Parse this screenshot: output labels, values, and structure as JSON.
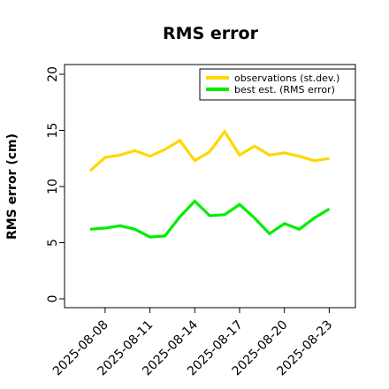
{
  "chart_data": {
    "type": "line",
    "title": "RMS error",
    "xlabel": "",
    "ylabel": "RMS error (cm)",
    "ylim": [
      0,
      21
    ],
    "yticks": [
      0,
      5,
      10,
      15,
      20
    ],
    "x": [
      "2025-08-07",
      "2025-08-08",
      "2025-08-09",
      "2025-08-10",
      "2025-08-11",
      "2025-08-12",
      "2025-08-13",
      "2025-08-14",
      "2025-08-15",
      "2025-08-16",
      "2025-08-17",
      "2025-08-18",
      "2025-08-19",
      "2025-08-20",
      "2025-08-21",
      "2025-08-22",
      "2025-08-23"
    ],
    "xticks": [
      {
        "label": "2025-08-08",
        "color": "#000000"
      },
      {
        "label": "2025-08-11",
        "color": "#000000"
      },
      {
        "label": "2025-08-14",
        "color": "#1f7a1f"
      },
      {
        "label": "2025-08-17",
        "color": "#000000"
      },
      {
        "label": "2025-08-20",
        "color": "#000000"
      },
      {
        "label": "2025-08-23",
        "color": "#000000"
      }
    ],
    "legend_position": "top-right",
    "grid": false,
    "series": [
      {
        "name": "observations (st.dev.)",
        "color": "#FFD700",
        "values": [
          11.4,
          12.6,
          12.8,
          13.2,
          12.7,
          13.3,
          14.1,
          12.3,
          13.1,
          14.9,
          12.8,
          13.6,
          12.8,
          13.0,
          12.7,
          12.3,
          12.5
        ]
      },
      {
        "name": "best est. (RMS error)",
        "color": "#00EE00",
        "values": [
          6.2,
          6.3,
          6.5,
          6.2,
          5.5,
          5.6,
          7.3,
          8.7,
          7.4,
          7.5,
          8.4,
          7.2,
          5.8,
          6.7,
          6.2,
          7.2,
          8.0
        ]
      }
    ]
  }
}
